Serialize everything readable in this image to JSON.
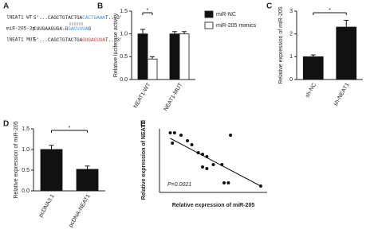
{
  "panel_a": {
    "label": "A",
    "rows": [
      {
        "name": "lNEAT1 WT",
        "segments": [
          {
            "text": "5'...CAGCTGTACTGA",
            "color": "#222222"
          },
          {
            "text": "CACTGAAA",
            "color": "#3a9ad9"
          },
          {
            "text": "T...3'",
            "color": "#222222"
          }
        ]
      },
      {
        "name": "miR-205-3p",
        "segments": [
          {
            "text": "CUUGAAGUGA-G",
            "color": "#222222"
          },
          {
            "text": "GACUUUA",
            "color": "#3a9ad9"
          },
          {
            "text": "G",
            "color": "#222222"
          }
        ]
      },
      {
        "name": "lNEAT1 MUT",
        "segments": [
          {
            "text": "5'...CAGCTGTACTGA",
            "color": "#222222"
          },
          {
            "text": "GUGACUUA",
            "color": "#e03030"
          },
          {
            "text": "T...3'",
            "color": "#222222"
          }
        ]
      }
    ]
  },
  "chart_data": [
    {
      "label": "B",
      "type": "bar",
      "categories": [
        "NEAT1-WT",
        "NEAT1-MUT"
      ],
      "series": [
        {
          "name": "miR-NC",
          "color": "#111111",
          "values": [
            1.0,
            1.0
          ],
          "errors": [
            0.1,
            0.05
          ]
        },
        {
          "name": "miR-205 mimics",
          "color": "#ffffff",
          "values": [
            0.45,
            1.0
          ],
          "errors": [
            0.05,
            0.05
          ]
        }
      ],
      "y_label": "Relative luciferase activity",
      "ylim": [
        0,
        1.5
      ],
      "yticks": [
        {
          "value": 0,
          "label": "0.0"
        },
        0.5,
        {
          "value": 1,
          "label": "1.0"
        },
        1.5
      ],
      "annotation": "*"
    },
    {
      "label": "C",
      "type": "bar",
      "categories": [
        "sh-NC",
        "sh-NEAT1"
      ],
      "values": [
        1.0,
        2.3
      ],
      "errors": [
        0.08,
        0.3
      ],
      "color": "#111111",
      "y_label": "Relative expression of miR-205",
      "ylim": [
        0,
        3
      ],
      "yticks": [
        0,
        1,
        2,
        3
      ],
      "annotation": "*"
    },
    {
      "label": "D",
      "type": "bar",
      "categories": [
        "pcDNA3.1",
        "pcDNA-NEAT1"
      ],
      "values": [
        1.0,
        0.52
      ],
      "errors": [
        0.1,
        0.08
      ],
      "color": "#111111",
      "y_label": "Relative expression of miR-205",
      "ylim": [
        0,
        1.5
      ],
      "yticks": [
        {
          "value": 0,
          "label": "0.0"
        },
        0.5,
        {
          "value": 1,
          "label": "1.0"
        },
        1.5
      ],
      "annotation": "*"
    },
    {
      "label": "E",
      "type": "scatter",
      "x": [
        0.05,
        0.07,
        0.1,
        0.06,
        0.13,
        0.15,
        0.18,
        0.2,
        0.22,
        0.2,
        0.22,
        0.25,
        0.29,
        0.33,
        0.3,
        0.32,
        0.47
      ],
      "y": [
        0.75,
        0.75,
        0.72,
        0.62,
        0.65,
        0.6,
        0.5,
        0.48,
        0.45,
        0.32,
        0.3,
        0.35,
        0.35,
        0.72,
        0.12,
        0.12,
        0.08
      ],
      "color": "#111111",
      "x_label": "Relative expression of miR-205",
      "y_label": "Relative expression of NEAT1",
      "annotation": "P=0.0021",
      "xlim": [
        0,
        0.5
      ],
      "ylim": [
        0,
        0.8
      ],
      "trend_line": {
        "x": [
          0.05,
          0.47
        ],
        "y": [
          0.68,
          0.08
        ]
      }
    }
  ]
}
